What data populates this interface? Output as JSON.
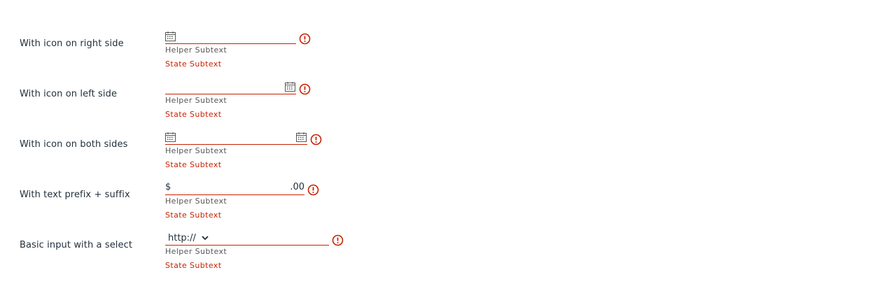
{
  "rows": [
    {
      "label": "With icon on right side",
      "helper": "Helper Subtext",
      "state": "State Subtext",
      "icon": "calendar-icon",
      "value": ""
    },
    {
      "label": "With icon on left side",
      "helper": "Helper Subtext",
      "state": "State Subtext",
      "icon": "calendar-icon",
      "value": ""
    },
    {
      "label": "With icon on both sides",
      "helper": "Helper Subtext",
      "state": "State Subtext",
      "icon": "calendar-icon",
      "value": ""
    },
    {
      "label": "With text prefix + suffix",
      "helper": "Helper Subtext",
      "state": "State Subtext",
      "prefix": "$",
      "suffix": ".00",
      "value": ""
    },
    {
      "label": "Basic input with a select",
      "helper": "Helper Subtext",
      "state": "State Subtext",
      "select_value": "http://",
      "value": ""
    }
  ],
  "colors": {
    "error": "#c92100",
    "text": "#22303c",
    "helper": "#565656"
  },
  "icons": {
    "error": "exclamation-circle-icon",
    "chevron": "chevron-down-icon"
  }
}
